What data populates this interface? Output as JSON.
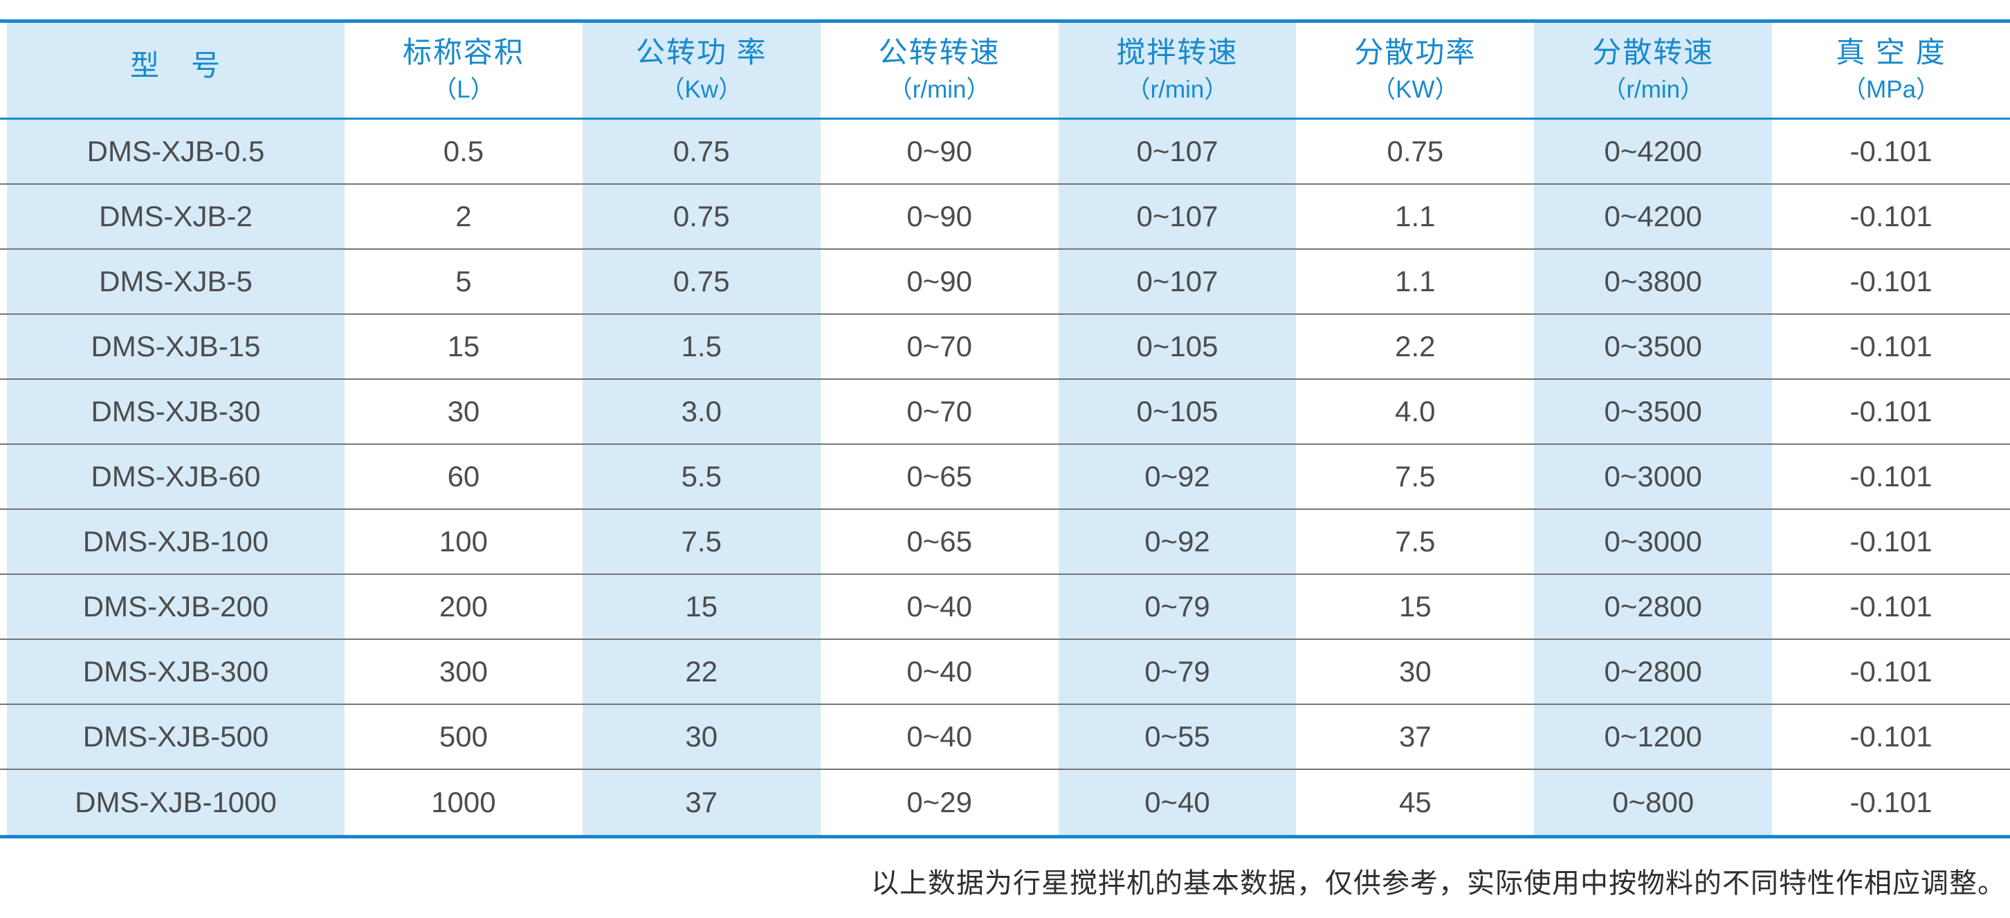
{
  "table": {
    "columns": [
      {
        "line1": "型　号",
        "line2": ""
      },
      {
        "line1": "标称容积",
        "line2": "（L）"
      },
      {
        "line1": "公转功 率",
        "line2": "（Kw）"
      },
      {
        "line1": "公转转速",
        "line2": "（r/min）"
      },
      {
        "line1": "搅拌转速",
        "line2": "（r/min）"
      },
      {
        "line1": "分散功率",
        "line2": "（KW）"
      },
      {
        "line1": "分散转速",
        "line2": "（r/min）"
      },
      {
        "line1": "真 空 度",
        "line2": "（MPa）"
      }
    ],
    "rows": [
      [
        "DMS-XJB-0.5",
        "0.5",
        "0.75",
        "0~90",
        "0~107",
        "0.75",
        "0~4200",
        "-0.101"
      ],
      [
        "DMS-XJB-2",
        "2",
        "0.75",
        "0~90",
        "0~107",
        "1.1",
        "0~4200",
        "-0.101"
      ],
      [
        "DMS-XJB-5",
        "5",
        "0.75",
        "0~90",
        "0~107",
        "1.1",
        "0~3800",
        "-0.101"
      ],
      [
        "DMS-XJB-15",
        "15",
        "1.5",
        "0~70",
        "0~105",
        "2.2",
        "0~3500",
        "-0.101"
      ],
      [
        "DMS-XJB-30",
        "30",
        "3.0",
        "0~70",
        "0~105",
        "4.0",
        "0~3500",
        "-0.101"
      ],
      [
        "DMS-XJB-60",
        "60",
        "5.5",
        "0~65",
        "0~92",
        "7.5",
        "0~3000",
        "-0.101"
      ],
      [
        "DMS-XJB-100",
        "100",
        "7.5",
        "0~65",
        "0~92",
        "7.5",
        "0~3000",
        "-0.101"
      ],
      [
        "DMS-XJB-200",
        "200",
        "15",
        "0~40",
        "0~79",
        "15",
        "0~2800",
        "-0.101"
      ],
      [
        "DMS-XJB-300",
        "300",
        "22",
        "0~40",
        "0~79",
        "30",
        "0~2800",
        "-0.101"
      ],
      [
        "DMS-XJB-500",
        "500",
        "30",
        "0~40",
        "0~55",
        "37",
        "0~1200",
        "-0.101"
      ],
      [
        "DMS-XJB-1000",
        "1000",
        "37",
        "0~29",
        "0~40",
        "45",
        "0~800",
        "-0.101"
      ]
    ]
  },
  "footer": {
    "note": "以上数据为行星搅拌机的基本数据，仅供参考，实际使用中按物料的不同特性作相应调整。"
  },
  "colors": {
    "accent_blue": "#1687cd",
    "header_text_blue": "#1789cd",
    "striped_cell_blue": "#d6eaf8",
    "body_text_gray": "#4c4c4c",
    "row_divider_gray": "#757575"
  }
}
